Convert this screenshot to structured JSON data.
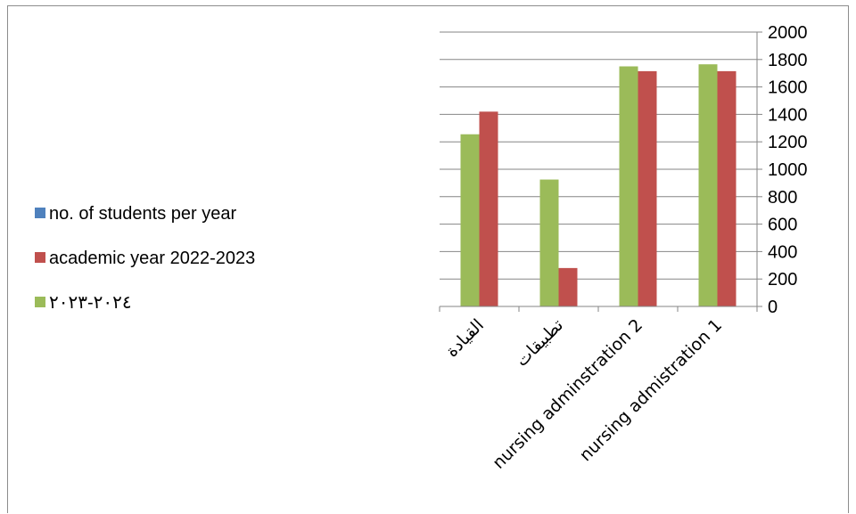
{
  "chart_data": {
    "type": "bar",
    "categories": [
      "القيادة",
      "تطبيقات",
      "nursing adminstration 2",
      "nursing admistration 1"
    ],
    "series": [
      {
        "name": "no. of students per year",
        "color": "#4F81BD",
        "values": [
          null,
          null,
          null,
          null
        ]
      },
      {
        "name": "academic year 2022-2023",
        "color": "#C0504D",
        "values": [
          1420,
          280,
          1715,
          1715
        ]
      },
      {
        "name": "٢٠٢٤-٢٠٢٣",
        "color": "#9BBB59",
        "values": [
          1255,
          925,
          1750,
          1765
        ]
      }
    ],
    "draw_order": [
      2,
      1
    ],
    "ylim": [
      0,
      2000
    ],
    "ytick_step": 200,
    "yaxis_position": "right",
    "grid": true,
    "legend_position": "left"
  }
}
